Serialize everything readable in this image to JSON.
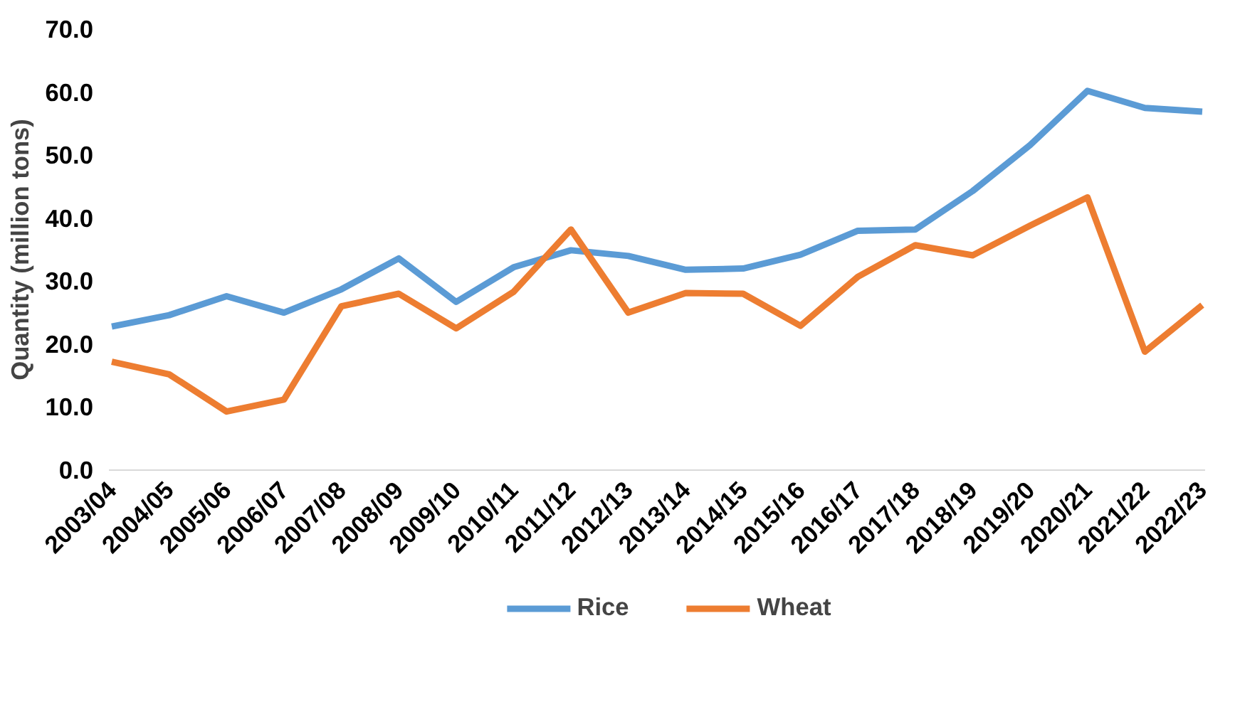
{
  "chart_data": {
    "type": "line",
    "ylabel": "Quantity (million tons)",
    "categories": [
      "2003/04",
      "2004/05",
      "2005/06",
      "2006/07",
      "2007/08",
      "2008/09",
      "2009/10",
      "2010/11",
      "2011/12",
      "2012/13",
      "2013/14",
      "2014/15",
      "2015/16",
      "2016/17",
      "2017/18",
      "2018/19",
      "2019/20",
      "2020/21",
      "2021/22",
      "2022/23"
    ],
    "series": [
      {
        "name": "Rice",
        "color": "#5b9bd5",
        "values": [
          22.8,
          24.6,
          27.6,
          25.0,
          28.7,
          33.6,
          26.7,
          32.2,
          34.9,
          34.0,
          31.8,
          32.0,
          34.2,
          38.0,
          38.2,
          44.3,
          51.6,
          60.2,
          57.5,
          56.9
        ]
      },
      {
        "name": "Wheat",
        "color": "#ed7d31",
        "values": [
          17.2,
          15.2,
          9.3,
          11.2,
          26.0,
          28.0,
          22.5,
          28.3,
          38.2,
          25.0,
          28.1,
          28.0,
          22.9,
          30.7,
          35.7,
          34.1,
          38.8,
          43.3,
          18.8,
          26.2
        ]
      }
    ],
    "ylim": [
      0,
      70
    ],
    "yticks": [
      {
        "value": 0,
        "label": "0.0"
      },
      {
        "value": 10,
        "label": "10.0"
      },
      {
        "value": 20,
        "label": "20.0"
      },
      {
        "value": 30,
        "label": "30.0"
      },
      {
        "value": 40,
        "label": "40.0"
      },
      {
        "value": 50,
        "label": "50.0"
      },
      {
        "value": 60,
        "label": "60.0"
      },
      {
        "value": 70,
        "label": "70.0"
      }
    ],
    "grid": false,
    "legend": "bottom",
    "marker": "none",
    "line_style": "solid"
  }
}
